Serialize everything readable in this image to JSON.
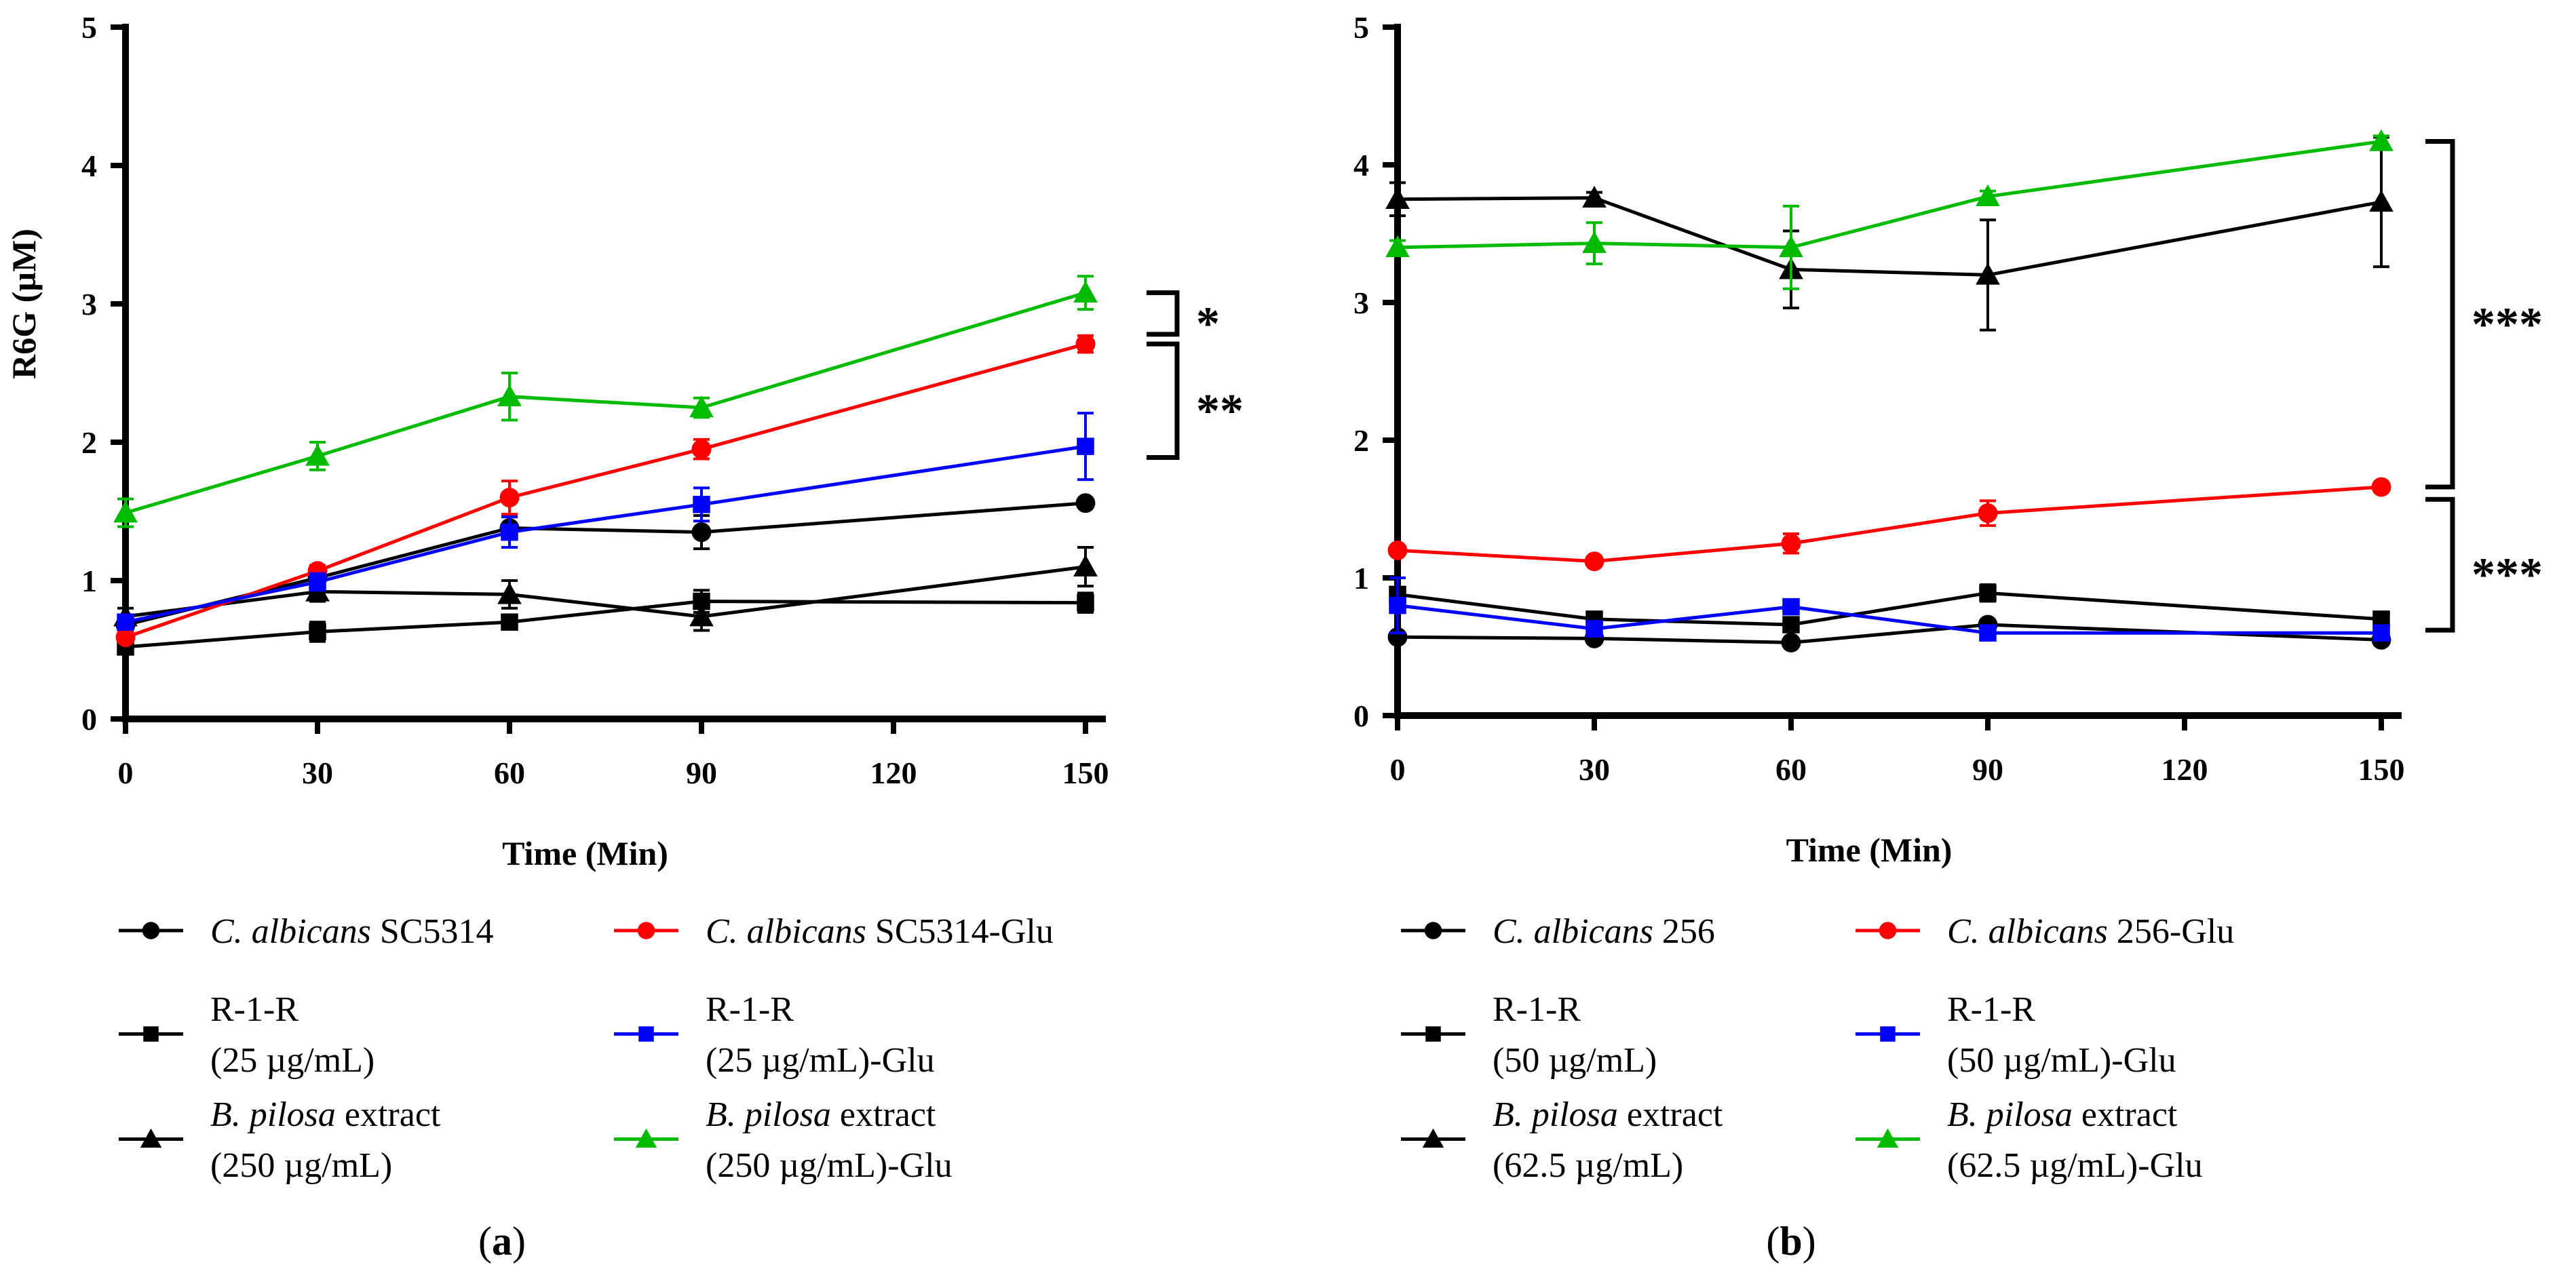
{
  "chart_data": [
    {
      "type": "line",
      "panel_label": "a",
      "xlabel": "Time (Min)",
      "ylabel": "R6G (µM)",
      "xlim": [
        0,
        150
      ],
      "ylim": [
        0,
        5
      ],
      "xticks": [
        0,
        30,
        60,
        90,
        120,
        150
      ],
      "yticks": [
        0,
        1,
        2,
        3,
        4,
        5
      ],
      "x": [
        0,
        30,
        60,
        90,
        150
      ],
      "series": [
        {
          "name": "C. albicans SC5314",
          "italic": "C. albicans",
          "rest": " SC5314",
          "line2": "",
          "color": "#000000",
          "marker": "circle",
          "values": [
            0.68,
            1.02,
            1.38,
            1.35,
            1.56
          ],
          "errors": [
            0.04,
            0.05,
            0.08,
            0.12,
            0.03
          ]
        },
        {
          "name": "R-1-R (25 µg/mL)",
          "italic": "",
          "rest": "R-1-R",
          "line2": "(25 µg/mL)",
          "color": "#000000",
          "marker": "square",
          "values": [
            0.52,
            0.63,
            0.7,
            0.85,
            0.84
          ],
          "errors": [
            0.04,
            0.07,
            0.05,
            0.08,
            0.07
          ]
        },
        {
          "name": "B. pilosa extract (250 µg/mL)",
          "italic": "B. pilosa",
          "rest": " extract",
          "line2": "(250 µg/mL)",
          "color": "#000000",
          "marker": "triangle",
          "values": [
            0.74,
            0.92,
            0.9,
            0.74,
            1.1
          ],
          "errors": [
            0.06,
            0.07,
            0.1,
            0.1,
            0.14
          ]
        },
        {
          "name": "C. albicans SC5314-Glu",
          "italic": "C. albicans",
          "rest": " SC5314-Glu",
          "line2": "",
          "color": "#ff0000",
          "marker": "circle",
          "values": [
            0.59,
            1.07,
            1.6,
            1.95,
            2.71
          ],
          "errors": [
            0.03,
            0.04,
            0.12,
            0.07,
            0.06
          ]
        },
        {
          "name": "R-1-R (25 µg/mL)-Glu",
          "italic": "",
          "rest": "R-1-R",
          "line2": "(25 µg/mL)-Glu",
          "color": "#0000ff",
          "marker": "square",
          "values": [
            0.7,
            0.99,
            1.35,
            1.55,
            1.97
          ],
          "errors": [
            0.04,
            0.06,
            0.11,
            0.12,
            0.24
          ]
        },
        {
          "name": "B. pilosa extract (250 µg/mL)-Glu",
          "italic": "B. pilosa",
          "rest": " extract",
          "line2": "(250 µg/mL)-Glu",
          "color": "#00bb00",
          "marker": "triangle",
          "values": [
            1.49,
            1.9,
            2.33,
            2.25,
            3.08
          ],
          "errors": [
            0.1,
            0.1,
            0.17,
            0.07,
            0.12
          ]
        }
      ],
      "significance": [
        {
          "label": "*",
          "from": 3.08,
          "to": 2.78
        },
        {
          "label": "**",
          "from": 2.71,
          "to": 1.89
        }
      ]
    },
    {
      "type": "line",
      "panel_label": "b",
      "xlabel": "Time (Min)",
      "ylabel": "",
      "xlim": [
        0,
        150
      ],
      "ylim": [
        0,
        5
      ],
      "xticks": [
        0,
        30,
        60,
        90,
        120,
        150
      ],
      "yticks": [
        0,
        1,
        2,
        3,
        4,
        5
      ],
      "x": [
        0,
        30,
        60,
        90,
        150
      ],
      "series": [
        {
          "name": "C. albicans 256",
          "italic": "C. albicans",
          "rest": " 256",
          "line2": "",
          "color": "#000000",
          "marker": "circle",
          "values": [
            0.57,
            0.56,
            0.53,
            0.66,
            0.55
          ],
          "errors": [
            0.02,
            0.02,
            0.02,
            0.03,
            0.02
          ]
        },
        {
          "name": "R-1-R (50 µg/mL)",
          "italic": "",
          "rest": "R-1-R",
          "line2": "(50 µg/mL)",
          "color": "#000000",
          "marker": "square",
          "values": [
            0.88,
            0.7,
            0.66,
            0.89,
            0.7
          ],
          "errors": [
            0.04,
            0.03,
            0.03,
            0.06,
            0.03
          ]
        },
        {
          "name": "B. pilosa extract (62.5 µg/mL)",
          "italic": "B. pilosa",
          "rest": " extract",
          "line2": "(62.5 µg/mL)",
          "color": "#000000",
          "marker": "triangle",
          "values": [
            3.75,
            3.76,
            3.24,
            3.2,
            3.73
          ],
          "errors": [
            0.12,
            0.04,
            0.28,
            0.4,
            0.47
          ]
        },
        {
          "name": "C. albicans 256-Glu",
          "italic": "C. albicans",
          "rest": " 256-Glu",
          "line2": "",
          "color": "#ff0000",
          "marker": "circle",
          "values": [
            1.2,
            1.12,
            1.25,
            1.47,
            1.66
          ],
          "errors": [
            0.03,
            0.03,
            0.07,
            0.09,
            0.03
          ]
        },
        {
          "name": "R-1-R (50 µg/mL)-Glu",
          "italic": "",
          "rest": "R-1-R",
          "line2": "(50 µg/mL)-Glu",
          "color": "#0000ff",
          "marker": "square",
          "values": [
            0.8,
            0.63,
            0.79,
            0.6,
            0.6
          ],
          "errors": [
            0.2,
            0.03,
            0.04,
            0.03,
            0.03
          ]
        },
        {
          "name": "B. pilosa extract (62.5 µg/mL)-Glu",
          "italic": "B. pilosa",
          "rest": " extract",
          "line2": " (62.5 µg/mL)-Glu",
          "color": "#00bb00",
          "marker": "triangle",
          "values": [
            3.4,
            3.43,
            3.4,
            3.77,
            4.17
          ],
          "errors": [
            0.05,
            0.15,
            0.3,
            0.04,
            0.04
          ]
        }
      ],
      "significance": [
        {
          "label": "***",
          "from": 4.17,
          "to": 1.66
        },
        {
          "label": "***",
          "from": 1.57,
          "to": 0.62
        }
      ]
    }
  ]
}
